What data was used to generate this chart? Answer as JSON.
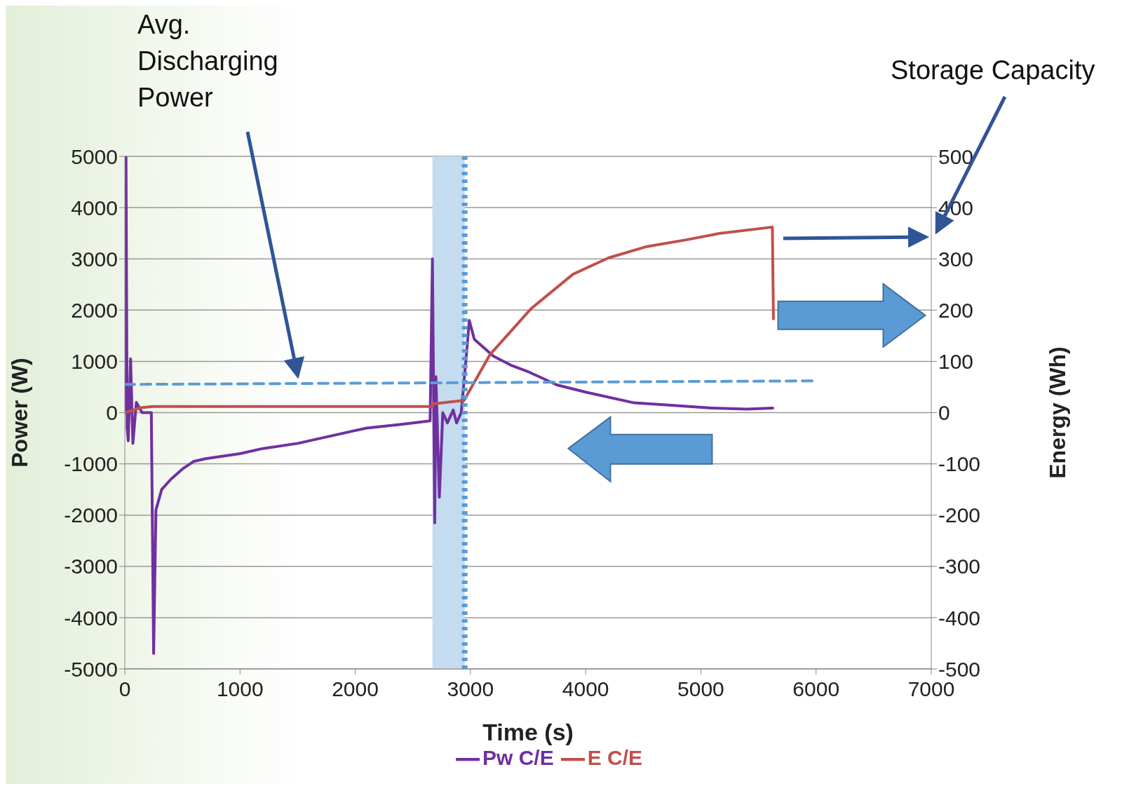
{
  "chart_data": {
    "type": "line",
    "xlabel": "Time (s)",
    "ylabel": "Power (W)",
    "y2label": "Energy (Wh)",
    "xlim": [
      0,
      7000
    ],
    "xticks": [
      0,
      1000,
      2000,
      3000,
      4000,
      5000,
      6000,
      7000
    ],
    "ylim": [
      -5000,
      5000
    ],
    "yticks": [
      -5000,
      -4000,
      -3000,
      -2000,
      -1000,
      0,
      1000,
      2000,
      3000,
      4000,
      5000
    ],
    "y2lim": [
      -500,
      500
    ],
    "y2ticks": [
      -500,
      -400,
      -300,
      -200,
      -100,
      0,
      100,
      200,
      300,
      400,
      500
    ],
    "grid": "y",
    "legend": "bottom",
    "marker": "none",
    "series": [
      {
        "name": "Pw C/E",
        "color": "#7030a0",
        "line_style": "solid",
        "x": [
          0,
          10,
          20,
          30,
          50,
          70,
          100,
          150,
          230,
          250,
          270,
          320,
          400,
          500,
          600,
          700,
          1000,
          1200,
          1500,
          1800,
          2100,
          2400,
          2650,
          2670,
          2690,
          2700,
          2730,
          2760,
          2800,
          2850,
          2880,
          2920,
          2960,
          2990,
          3034,
          3200,
          3348,
          3500,
          3751,
          4000,
          4422,
          4700,
          5095,
          5400,
          5624
        ],
        "values": [
          0,
          5000,
          -300,
          -550,
          1050,
          -600,
          200,
          0,
          0,
          -4700,
          -1900,
          -1500,
          -1300,
          -1100,
          -950,
          -900,
          -800,
          -700,
          -600,
          -450,
          -300,
          -230,
          -160,
          3000,
          -2150,
          700,
          -1650,
          0,
          -200,
          50,
          -200,
          0,
          1000,
          1800,
          1430,
          1100,
          930,
          800,
          540,
          400,
          190,
          150,
          90,
          70,
          90
        ]
      },
      {
        "name": "E C/E",
        "color": "#c0504d",
        "axis": "y2",
        "line_style": "solid",
        "x": [
          0,
          150,
          250,
          2670,
          2680,
          2945,
          3169,
          3527,
          3890,
          4199,
          4530,
          4871,
          5170,
          5621,
          5630
        ],
        "values": [
          0,
          10,
          12,
          12,
          17,
          24,
          113,
          203,
          270,
          302,
          324,
          337,
          350,
          362,
          183
        ]
      },
      {
        "color": "#5b9bd5",
        "line_style": "dashed",
        "x": [
          0,
          6000
        ],
        "values": [
          550,
          620
        ]
      }
    ],
    "bands": [
      {
        "axis": "x",
        "from": 2670,
        "to": 2950,
        "color": "#c5dbf0"
      }
    ],
    "ref_lines": [
      {
        "axis": "x",
        "value": 2950,
        "color": "#5b9bd5",
        "line_style": "dotted"
      }
    ],
    "annotations": [
      "Avg. Discharging Power",
      "Storage Capacity"
    ]
  }
}
